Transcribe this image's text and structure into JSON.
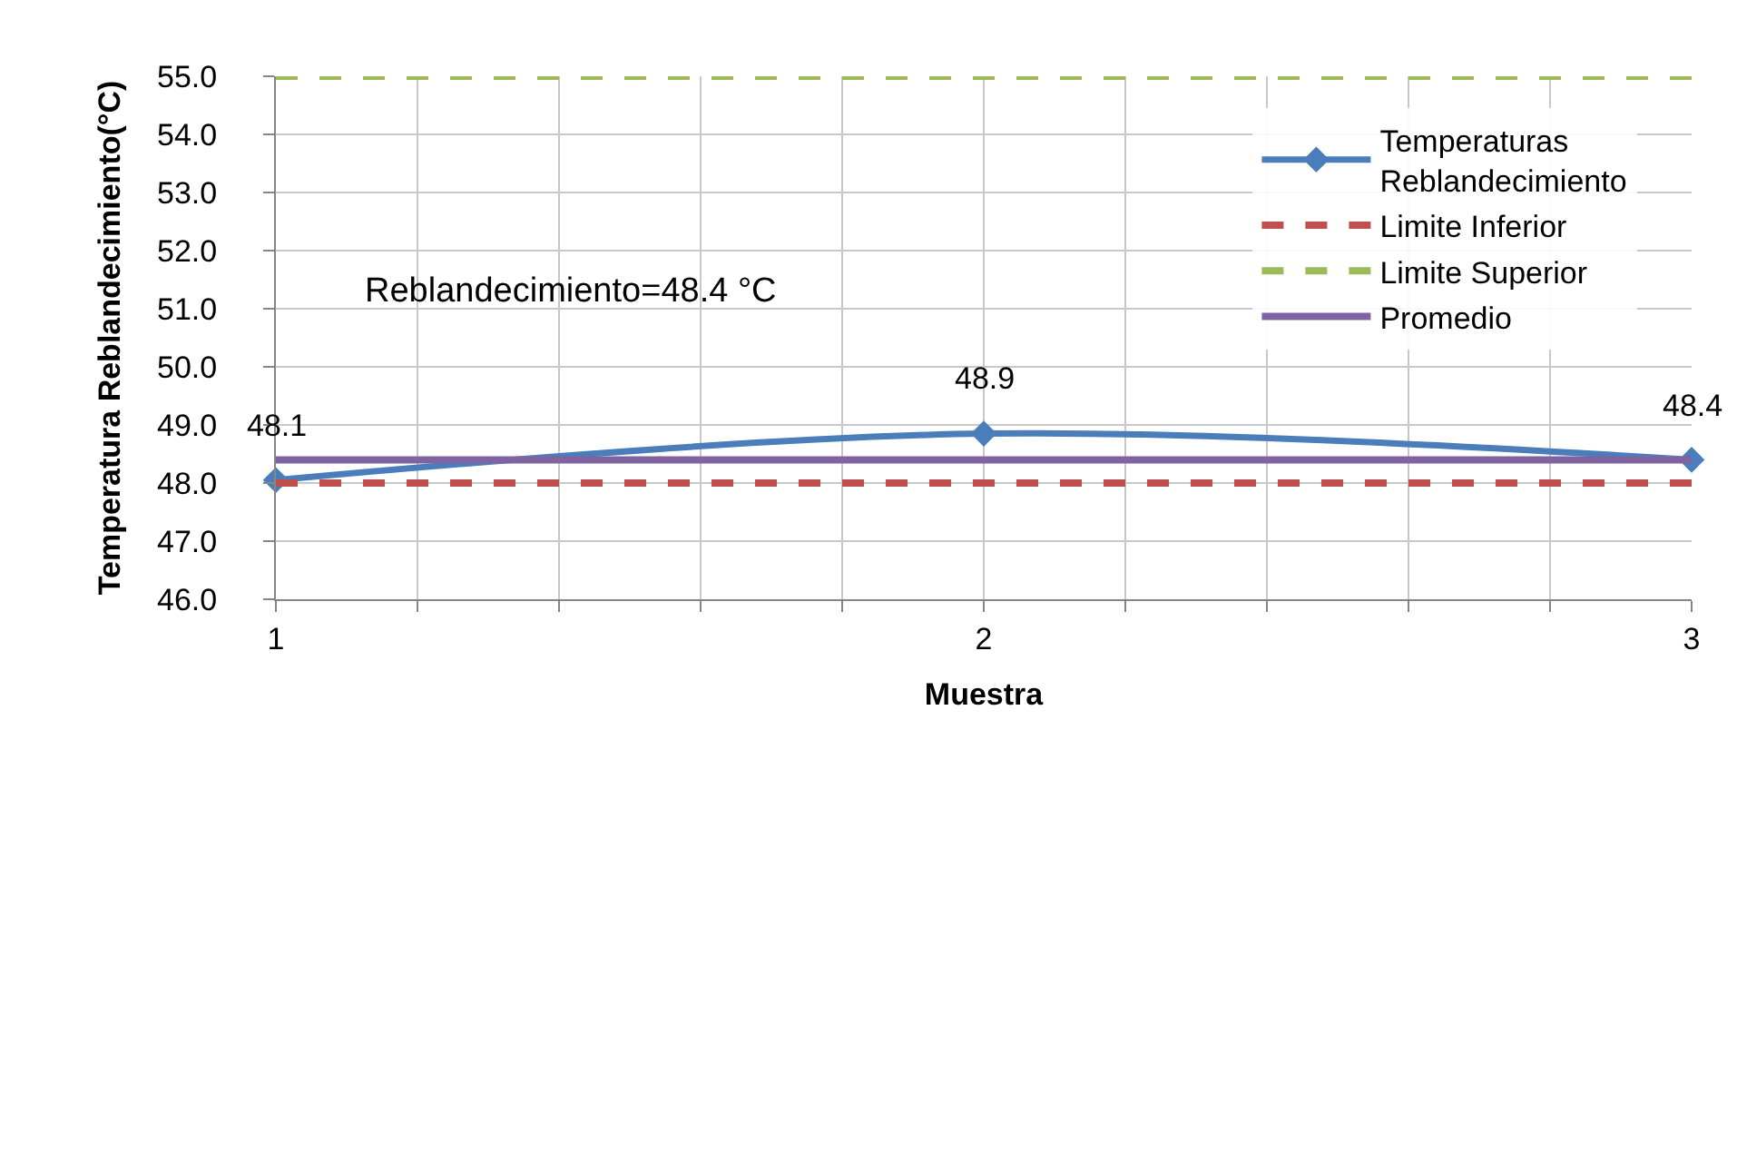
{
  "chart_data": {
    "type": "line",
    "xlabel": "Muestra",
    "ylabel": "Temperatura Reblandecimiento(°C)",
    "x": [
      1,
      2,
      3
    ],
    "xlim": [
      1,
      3
    ],
    "xticks": [
      1,
      {
        "value": 1.2,
        "label": null
      },
      {
        "value": 1.4,
        "label": null
      },
      {
        "value": 1.6,
        "label": null
      },
      {
        "value": 1.8,
        "label": null
      },
      2,
      {
        "value": 2.2,
        "label": null
      },
      {
        "value": 2.4,
        "label": null
      },
      {
        "value": 2.6,
        "label": null
      },
      {
        "value": 2.8,
        "label": null
      },
      3
    ],
    "ylim": [
      46,
      55
    ],
    "yticks": [
      {
        "value": 46,
        "label": "46.0"
      },
      {
        "value": 47,
        "label": "47.0"
      },
      {
        "value": 48,
        "label": "48.0"
      },
      {
        "value": 49,
        "label": "49.0"
      },
      {
        "value": 50,
        "label": "50.0"
      },
      {
        "value": 51,
        "label": "51.0"
      },
      {
        "value": 52,
        "label": "52.0"
      },
      {
        "value": 53,
        "label": "53.0"
      },
      {
        "value": 54,
        "label": "54.0"
      },
      {
        "value": 55,
        "label": "55.0"
      }
    ],
    "grid": true,
    "legend": "right",
    "series": [
      {
        "name": "Temperaturas Reblandecimiento",
        "color": "#4a7ebb",
        "values": [
          48.05,
          48.85,
          48.4
        ],
        "value_labels": [
          "48.1",
          "48.9",
          "48.4"
        ],
        "marker": "diamond",
        "line_style": "solid"
      },
      {
        "name": "Limite Inferior",
        "color": "#c0504d",
        "values": [
          48,
          48,
          48
        ],
        "marker": "none",
        "line_style": "dashed"
      },
      {
        "name": "Limite Superior",
        "color": "#9bbb59",
        "values": [
          55,
          55,
          55
        ],
        "marker": "none",
        "line_style": "dashed"
      },
      {
        "name": "Promedio",
        "color": "#8064a2",
        "values": [
          48.4,
          48.4,
          48.4
        ],
        "marker": "none",
        "line_style": "solid"
      }
    ],
    "annotations": [
      "Reblandecimiento=48.4 °C"
    ]
  }
}
